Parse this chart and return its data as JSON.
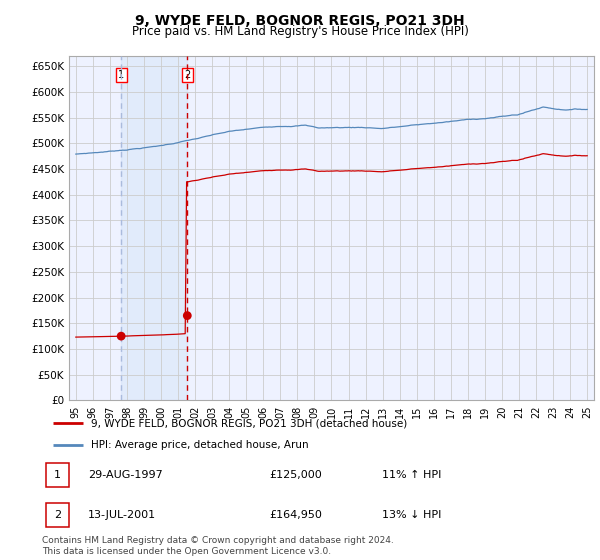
{
  "title": "9, WYDE FELD, BOGNOR REGIS, PO21 3DH",
  "subtitle": "Price paid vs. HM Land Registry's House Price Index (HPI)",
  "ylim": [
    0,
    670000
  ],
  "yticks": [
    0,
    50000,
    100000,
    150000,
    200000,
    250000,
    300000,
    350000,
    400000,
    450000,
    500000,
    550000,
    600000,
    650000
  ],
  "ytick_labels": [
    "£0",
    "£50K",
    "£100K",
    "£150K",
    "£200K",
    "£250K",
    "£300K",
    "£350K",
    "£400K",
    "£450K",
    "£500K",
    "£550K",
    "£600K",
    "£650K"
  ],
  "xlim_start": 1994.6,
  "xlim_end": 2025.4,
  "transaction1_date": 1997.66,
  "transaction1_price": 125000,
  "transaction1_label": "1",
  "transaction2_date": 2001.54,
  "transaction2_price": 164950,
  "transaction2_label": "2",
  "hpi_color": "#5588bb",
  "price_color": "#cc0000",
  "vline1_color": "#aabbdd",
  "vline2_color": "#cc0000",
  "grid_color": "#cccccc",
  "background_color": "#ffffff",
  "plot_bg_color": "#eef2ff",
  "legend_label1": "9, WYDE FELD, BOGNOR REGIS, PO21 3DH (detached house)",
  "legend_label2": "HPI: Average price, detached house, Arun",
  "table_row1": [
    "1",
    "29-AUG-1997",
    "£125,000",
    "11% ↑ HPI"
  ],
  "table_row2": [
    "2",
    "13-JUL-2001",
    "£164,950",
    "13% ↓ HPI"
  ],
  "footer": "Contains HM Land Registry data © Crown copyright and database right 2024.\nThis data is licensed under the Open Government Licence v3.0."
}
